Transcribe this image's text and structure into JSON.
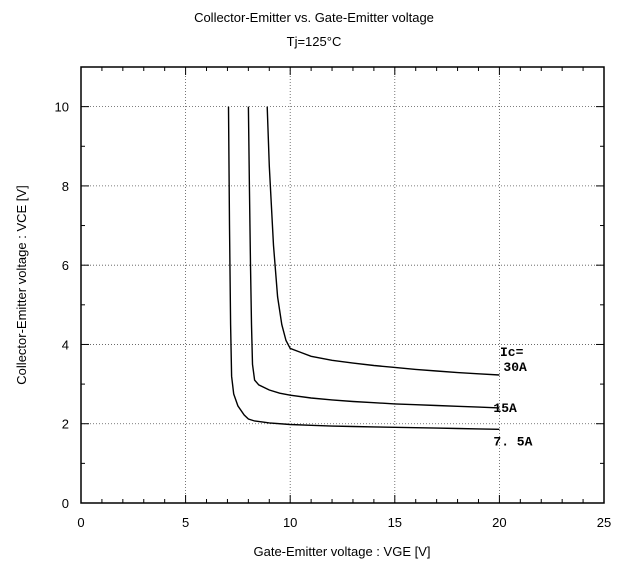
{
  "chart_data": {
    "type": "line",
    "title": "Collector-Emitter  vs.  Gate-Emitter  voltage",
    "subtitle": "Tj=125°C",
    "xlabel": "Gate-Emitter  voltage  :  VGE [V]",
    "ylabel": "Collector-Emitter  voltage  :   VCE [V]",
    "xlim": [
      0,
      25
    ],
    "ylim": [
      0,
      11
    ],
    "xticks": [
      0,
      5,
      10,
      15,
      20,
      25
    ],
    "yticks": [
      0,
      2,
      4,
      6,
      8,
      10
    ],
    "grid": true,
    "legend_header": "Ic=",
    "series": [
      {
        "name": "30A",
        "x": [
          8.9,
          9.0,
          9.2,
          9.4,
          9.6,
          9.8,
          10.0,
          10.5,
          11.0,
          12.0,
          13.0,
          14.0,
          15.0,
          16.0,
          17.0,
          18.0,
          19.0,
          20.0
        ],
        "y": [
          10.0,
          8.5,
          6.5,
          5.2,
          4.5,
          4.1,
          3.9,
          3.8,
          3.7,
          3.6,
          3.53,
          3.47,
          3.42,
          3.37,
          3.33,
          3.29,
          3.26,
          3.23
        ]
      },
      {
        "name": "15A",
        "x": [
          8.0,
          8.05,
          8.1,
          8.15,
          8.2,
          8.3,
          8.5,
          9.0,
          9.5,
          10.0,
          11.0,
          12.0,
          13.0,
          14.0,
          15.0,
          16.0,
          17.0,
          18.0,
          19.0,
          20.0
        ],
        "y": [
          10.0,
          8.0,
          6.0,
          4.5,
          3.5,
          3.1,
          2.98,
          2.85,
          2.77,
          2.72,
          2.65,
          2.6,
          2.56,
          2.53,
          2.5,
          2.48,
          2.46,
          2.44,
          2.42,
          2.4
        ]
      },
      {
        "name": "7. 5A",
        "x": [
          7.05,
          7.1,
          7.15,
          7.2,
          7.3,
          7.5,
          7.8,
          8.0,
          8.3,
          8.7,
          9.0,
          10.0,
          11.0,
          12.0,
          13.0,
          14.0,
          15.0,
          16.0,
          17.0,
          18.0,
          19.0,
          20.0
        ],
        "y": [
          10.0,
          7.0,
          4.5,
          3.2,
          2.75,
          2.45,
          2.22,
          2.12,
          2.07,
          2.04,
          2.02,
          1.98,
          1.96,
          1.94,
          1.93,
          1.92,
          1.91,
          1.9,
          1.89,
          1.88,
          1.87,
          1.86
        ]
      }
    ],
    "colors": {
      "line": "#000000",
      "grid": "#555555",
      "frame": "#000000"
    }
  }
}
